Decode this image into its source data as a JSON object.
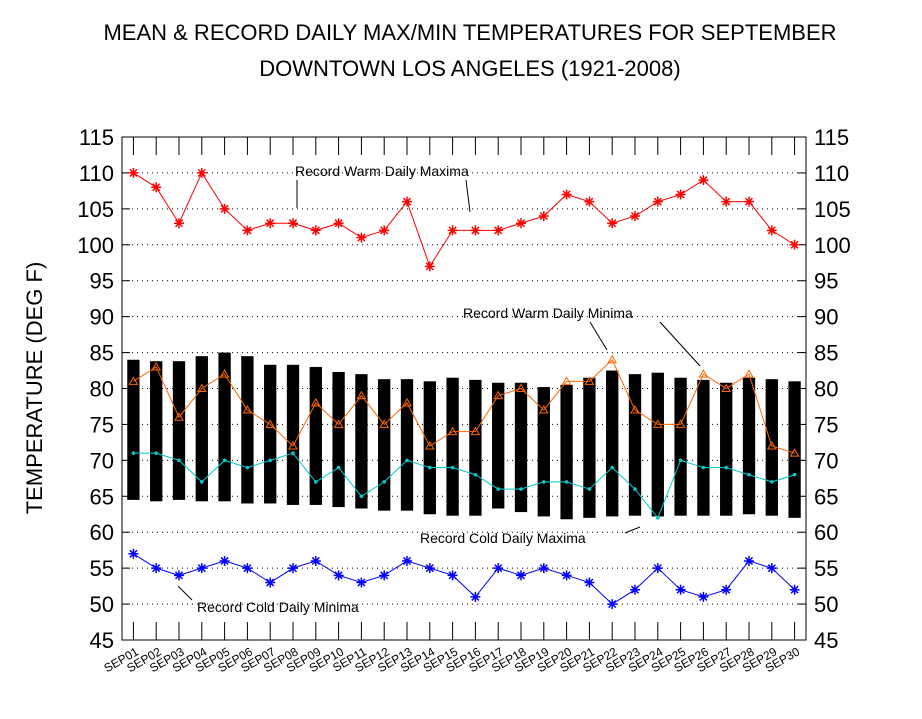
{
  "chart_data": {
    "type": "floating-bar-line",
    "title": [
      "MEAN & RECORD DAILY MAX/MIN TEMPERATURES FOR SEPTEMBER",
      "DOWNTOWN LOS ANGELES (1921-2008)"
    ],
    "y_label": "TEMPERATURE (DEG F)",
    "categories": [
      "SEP01",
      "SEP02",
      "SEP03",
      "SEP04",
      "SEP05",
      "SEP06",
      "SEP07",
      "SEP08",
      "SEP09",
      "SEP10",
      "SEP11",
      "SEP12",
      "SEP13",
      "SEP14",
      "SEP15",
      "SEP16",
      "SEP17",
      "SEP18",
      "SEP19",
      "SEP20",
      "SEP21",
      "SEP22",
      "SEP23",
      "SEP24",
      "SEP25",
      "SEP26",
      "SEP27",
      "SEP28",
      "SEP29",
      "SEP30"
    ],
    "bars": {
      "color": "#000000",
      "low": [
        64.5,
        64.3,
        64.5,
        64.3,
        64.3,
        64,
        64,
        63.8,
        63.8,
        63.5,
        63.3,
        63,
        63,
        62.5,
        62.3,
        62.3,
        63.3,
        62.8,
        62.2,
        61.8,
        62,
        62.2,
        62.3,
        62.2,
        62.3,
        62.3,
        62.3,
        62.5,
        62.3,
        62
      ],
      "high": [
        84,
        83.8,
        83.8,
        84.5,
        85,
        84.5,
        83.3,
        83.3,
        83,
        82.3,
        82,
        81.3,
        81.3,
        81,
        81.5,
        81.2,
        80.8,
        80.8,
        80.2,
        80.5,
        81.5,
        82.5,
        82,
        82.2,
        81.5,
        81.2,
        80.8,
        81.5,
        81.3,
        81
      ]
    },
    "series": [
      {
        "name": "Record Warm Daily Maxima",
        "color": "#ff0000",
        "marker": "asterisk",
        "values": [
          110,
          108,
          103,
          110,
          105,
          102,
          103,
          103,
          102,
          103,
          101,
          102,
          106,
          97,
          102,
          102,
          102,
          103,
          104,
          107,
          106,
          103,
          104,
          106,
          107,
          109,
          106,
          106,
          102,
          100
        ]
      },
      {
        "name": "Record Warm Daily Minima",
        "color": "#ff6600",
        "marker": "triangle",
        "values": [
          81,
          83,
          76,
          80,
          82,
          77,
          75,
          72,
          78,
          75,
          79,
          75,
          78,
          72,
          74,
          74,
          79,
          80,
          77,
          81,
          81,
          84,
          77,
          75,
          75,
          82,
          80,
          82,
          72,
          71
        ]
      },
      {
        "name": "Record Cold Daily Maxima",
        "color": "#00cccc",
        "marker": "dot",
        "values": [
          71,
          71,
          70,
          67,
          70,
          69,
          70,
          71,
          67,
          69,
          65,
          67,
          70,
          69,
          69,
          68,
          66,
          66,
          67,
          67,
          66,
          69,
          66,
          62,
          70,
          69,
          69,
          68,
          67,
          68
        ]
      },
      {
        "name": "Record Cold Daily Minima",
        "color": "#0000ff",
        "marker": "asterisk",
        "values": [
          57,
          55,
          54,
          55,
          56,
          55,
          53,
          55,
          56,
          54,
          53,
          54,
          56,
          55,
          54,
          51,
          55,
          54,
          55,
          54,
          53,
          50,
          52,
          55,
          52,
          51,
          52,
          56,
          55,
          52
        ]
      }
    ],
    "ylim": [
      45,
      115
    ],
    "yticks": [
      45,
      50,
      55,
      60,
      65,
      70,
      75,
      80,
      85,
      90,
      95,
      100,
      105,
      110,
      115
    ],
    "grid": true
  }
}
